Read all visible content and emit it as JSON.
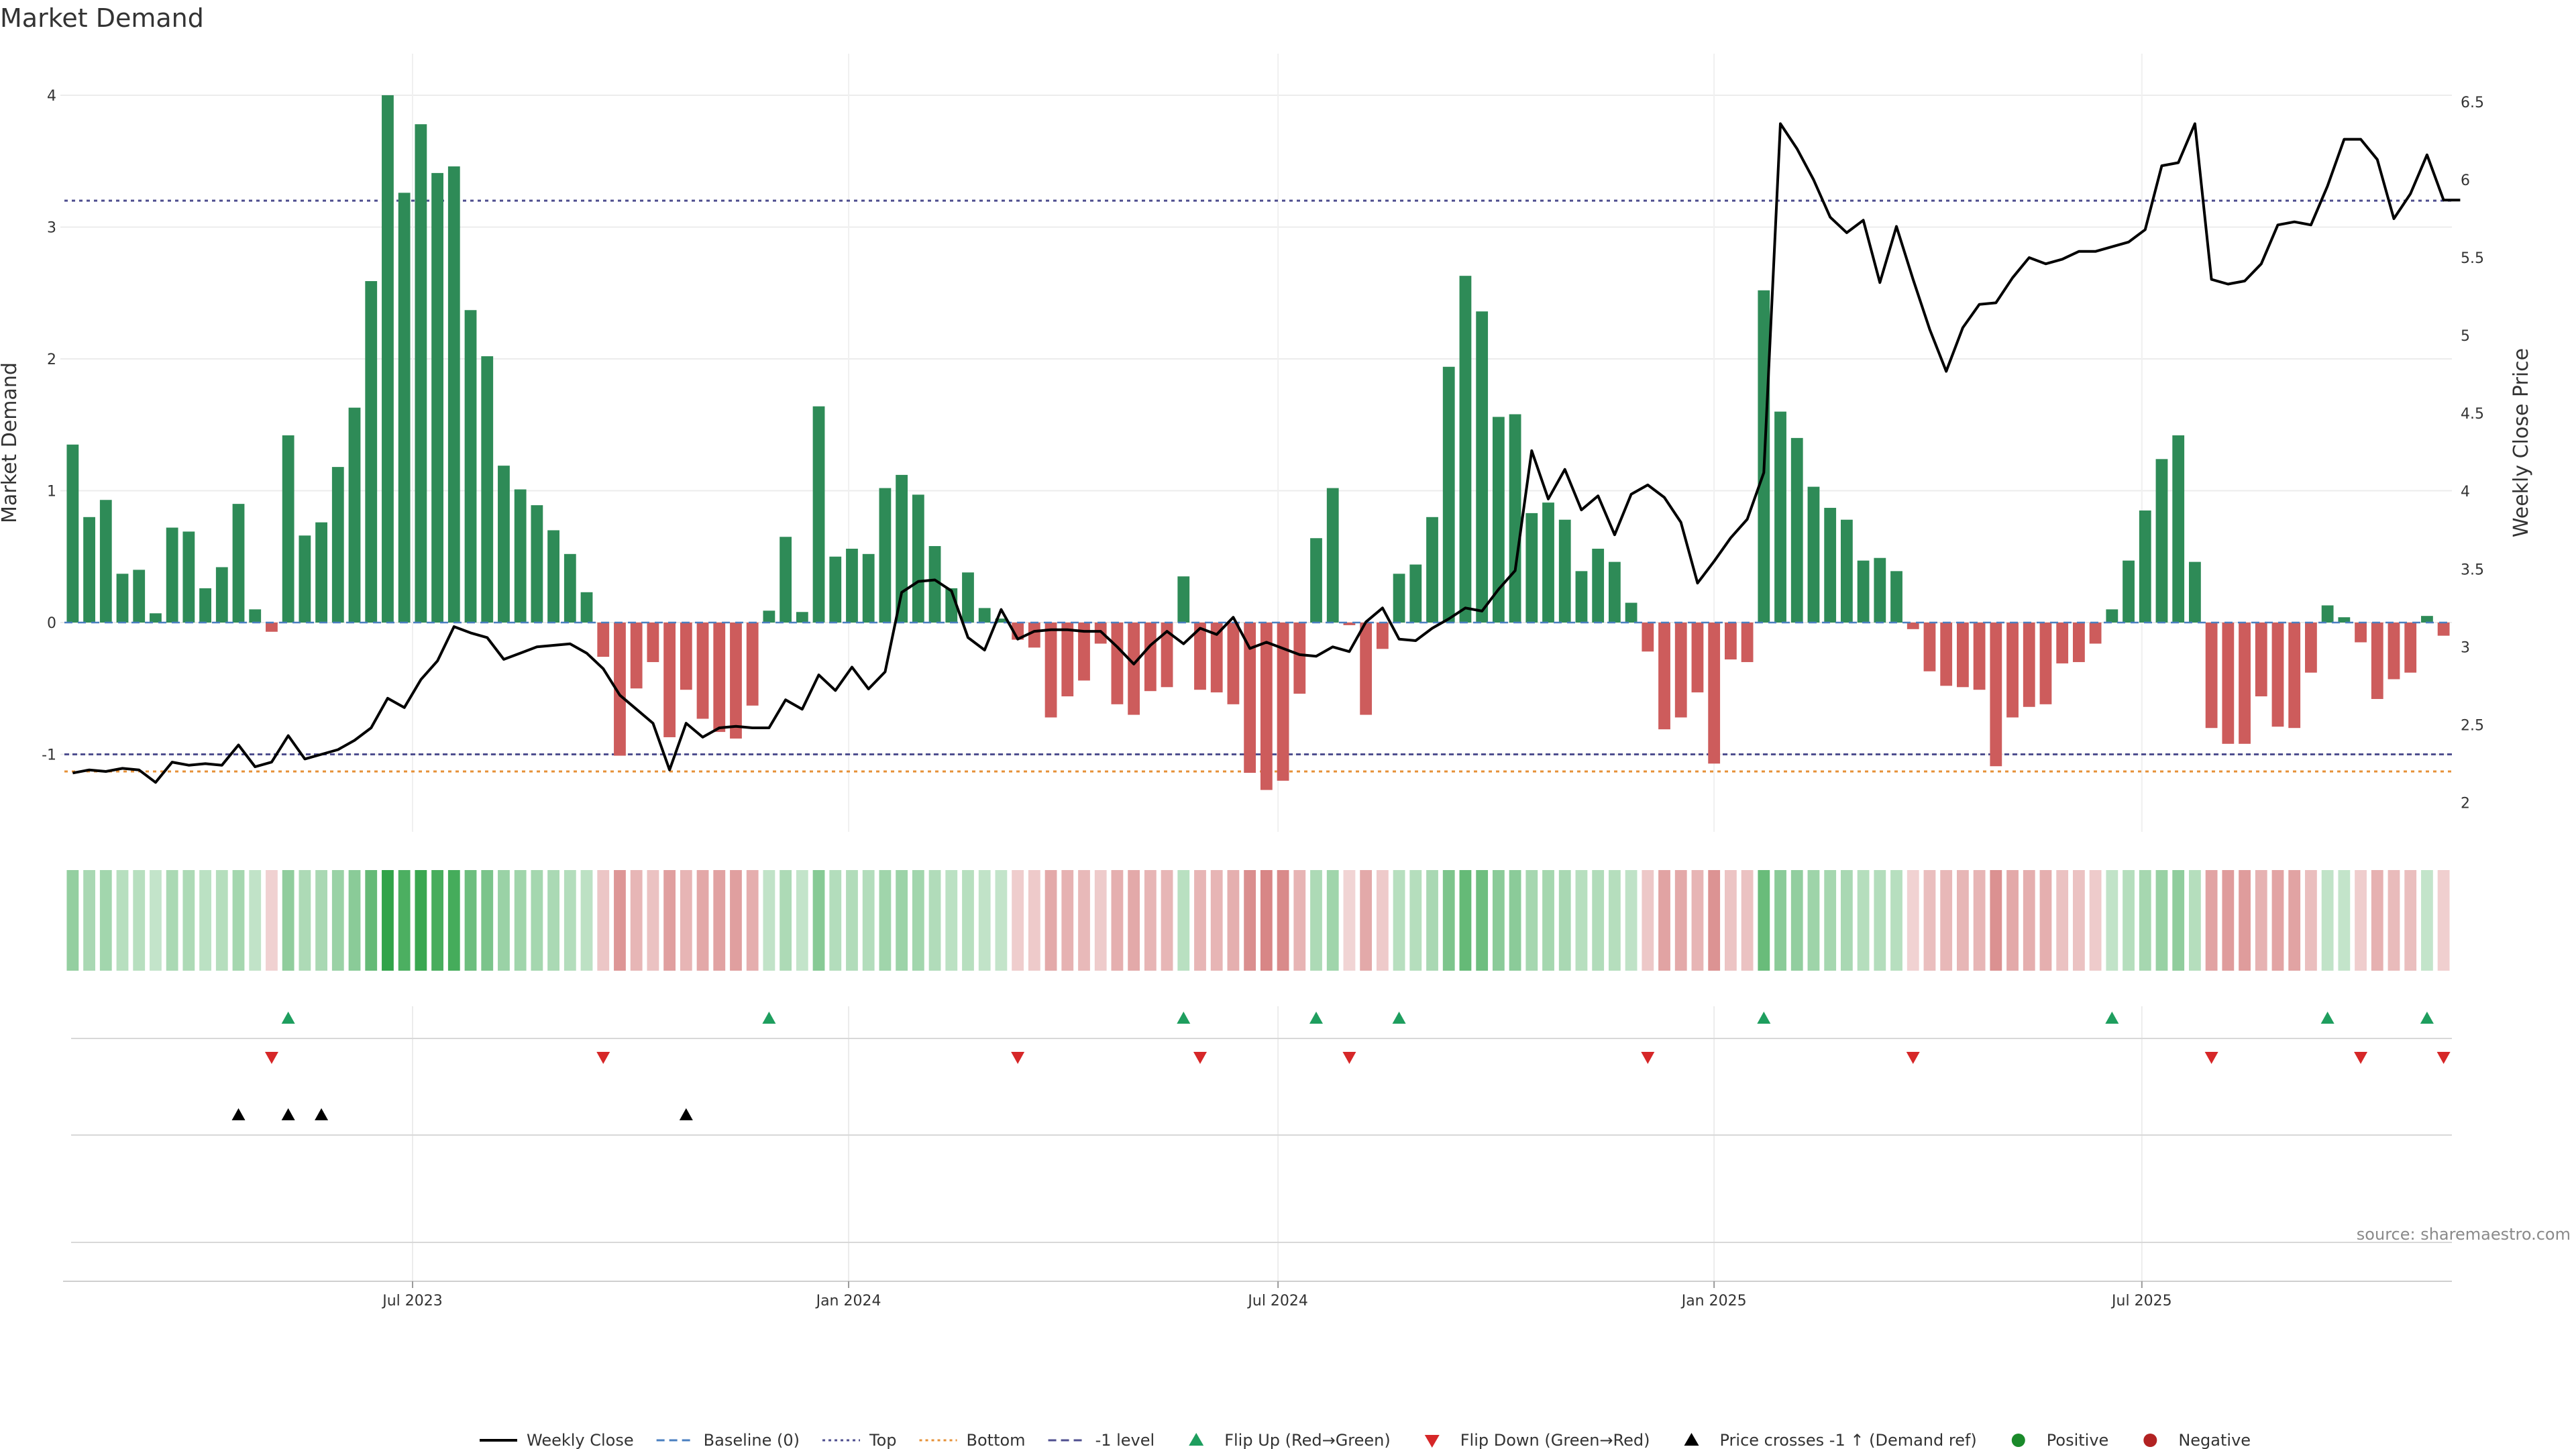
{
  "chart_data": {
    "type": "bar",
    "title": "Market Demand",
    "ylabel": "Market Demand",
    "y2label": "Weekly Close Price",
    "ylim": [
      -1.55,
      4.2
    ],
    "y2lim": [
      1.92,
      6.56
    ],
    "grid": true,
    "source": "source: sharemaestro.com",
    "x_ticks": [
      {
        "label": "Jul 2023",
        "week": 20.5
      },
      {
        "label": "Jan 2024",
        "week": 46.8
      },
      {
        "label": "Jul 2024",
        "week": 72.7
      },
      {
        "label": "Jan 2025",
        "week": 99
      },
      {
        "label": "Jul 2025",
        "week": 124.8
      }
    ],
    "y_ticks": [
      "-1",
      "0",
      "1",
      "2",
      "3",
      "4"
    ],
    "y2_ticks": [
      "2",
      "2.5",
      "3",
      "3.5",
      "4",
      "4.5",
      "5",
      "5.5",
      "6",
      "6.5"
    ],
    "reference_lines": {
      "top": 3.2,
      "bottom": -1.13,
      "minus_one": -1
    },
    "series": [
      {
        "name": "Market Demand",
        "values": [
          1.35,
          0.8,
          0.93,
          0.37,
          0.4,
          0.07,
          0.72,
          0.69,
          0.26,
          0.42,
          0.9,
          0.1,
          -0.07,
          1.42,
          0.66,
          0.76,
          1.18,
          1.63,
          2.59,
          4.0,
          3.26,
          3.78,
          3.41,
          3.46,
          2.37,
          2.02,
          1.19,
          1.01,
          0.89,
          0.7,
          0.52,
          0.23,
          -0.26,
          -1.01,
          -0.5,
          -0.3,
          -0.87,
          -0.51,
          -0.73,
          -0.83,
          -0.88,
          -0.63,
          0.09,
          0.65,
          0.08,
          1.64,
          0.5,
          0.56,
          0.52,
          1.02,
          1.12,
          0.97,
          0.58,
          0.26,
          0.38,
          0.11,
          0.03,
          -0.13,
          -0.19,
          -0.72,
          -0.56,
          -0.44,
          -0.16,
          -0.62,
          -0.7,
          -0.52,
          -0.49,
          0.35,
          -0.51,
          -0.53,
          -0.62,
          -1.14,
          -1.27,
          -1.2,
          -0.54,
          0.64,
          1.02,
          -0.02,
          -0.7,
          -0.2,
          0.37,
          0.44,
          0.8,
          1.94,
          2.63,
          2.36,
          1.56,
          1.58,
          0.83,
          0.91,
          0.78,
          0.39,
          0.56,
          0.46,
          0.15,
          -0.22,
          -0.81,
          -0.72,
          -0.53,
          -1.07,
          -0.28,
          -0.3,
          2.52,
          1.6,
          1.4,
          1.03,
          0.87,
          0.78,
          0.47,
          0.49,
          0.39,
          -0.05,
          -0.37,
          -0.48,
          -0.49,
          -0.51,
          -1.09,
          -0.72,
          -0.64,
          -0.62,
          -0.31,
          -0.3,
          -0.16,
          0.1,
          0.47,
          0.85,
          1.24,
          1.42,
          0.46,
          -0.8,
          -0.92,
          -0.92,
          -0.56,
          -0.79,
          -0.8,
          -0.38,
          0.13,
          0.04,
          -0.15,
          -0.58,
          -0.43,
          -0.38,
          0.05,
          -0.1
        ]
      },
      {
        "name": "Weekly Close",
        "values": [
          2.19,
          2.21,
          2.2,
          2.22,
          2.21,
          2.13,
          2.26,
          2.24,
          2.25,
          2.24,
          2.37,
          2.23,
          2.26,
          2.43,
          2.28,
          2.31,
          2.34,
          2.4,
          2.48,
          2.67,
          2.61,
          2.79,
          2.91,
          3.13,
          3.09,
          3.06,
          2.92,
          2.96,
          3.0,
          3.01,
          3.02,
          2.96,
          2.86,
          2.69,
          2.6,
          2.51,
          2.21,
          2.51,
          2.42,
          2.48,
          2.49,
          2.48,
          2.48,
          2.66,
          2.6,
          2.82,
          2.72,
          2.87,
          2.73,
          2.84,
          3.35,
          3.42,
          3.43,
          3.36,
          3.06,
          2.98,
          3.24,
          3.05,
          3.1,
          3.11,
          3.11,
          3.1,
          3.1,
          3.0,
          2.89,
          3.01,
          3.1,
          3.02,
          3.12,
          3.08,
          3.19,
          2.99,
          3.03,
          2.99,
          2.95,
          2.94,
          3.0,
          2.97,
          3.16,
          3.25,
          3.05,
          3.04,
          3.12,
          3.18,
          3.25,
          3.23,
          3.37,
          3.49,
          4.26,
          3.95,
          4.14,
          3.88,
          3.97,
          3.72,
          3.98,
          4.04,
          3.96,
          3.8,
          3.41,
          3.55,
          3.7,
          3.82,
          4.12,
          6.36,
          6.2,
          6.0,
          5.76,
          5.66,
          5.74,
          5.34,
          5.7,
          5.36,
          5.04,
          4.77,
          5.05,
          5.2,
          5.21,
          5.37,
          5.5,
          5.46,
          5.49,
          5.54,
          5.54,
          5.57,
          5.6,
          5.68,
          6.09,
          6.11,
          6.36,
          5.36,
          5.33,
          5.35,
          5.46,
          5.71,
          5.73,
          5.71,
          5.96,
          6.26,
          6.26,
          6.13,
          5.75,
          5.91,
          6.16,
          5.87,
          5.87
        ]
      }
    ],
    "flip_up_weeks": [
      13,
      42,
      67,
      75,
      80,
      102,
      123,
      136,
      142
    ],
    "flip_down_weeks": [
      12,
      32,
      57,
      68,
      77,
      95,
      111,
      129,
      138,
      143
    ],
    "price_cross_weeks": [
      10,
      13,
      15,
      37
    ],
    "legend": [
      {
        "label": "Weekly Close",
        "type": "line",
        "color": "#000000"
      },
      {
        "label": "Baseline (0)",
        "type": "dash",
        "color": "#4a7fc0"
      },
      {
        "label": "Top",
        "type": "dot",
        "color": "#4f4f8f"
      },
      {
        "label": "Bottom",
        "type": "dot",
        "color": "#e69138"
      },
      {
        "label": "-1 level",
        "type": "dash",
        "color": "#4f4f8f"
      },
      {
        "label": "Flip Up (Red→Green)",
        "type": "tri-up",
        "color": "#1e9e5e"
      },
      {
        "label": "Flip Down (Green→Red)",
        "type": "tri-down",
        "color": "#d62728"
      },
      {
        "label": "Price crosses -1 ↑ (Demand ref)",
        "type": "tri-up",
        "color": "#000000"
      },
      {
        "label": "Positive",
        "type": "circle",
        "color": "#1a8a2a"
      },
      {
        "label": "Negative",
        "type": "circle",
        "color": "#b22222"
      }
    ],
    "colors": {
      "positive_bar": "#2e8b57",
      "negative_bar": "#cd5c5c",
      "heat_positive": "#31a349",
      "heat_negative": "#cf6b6b"
    }
  }
}
